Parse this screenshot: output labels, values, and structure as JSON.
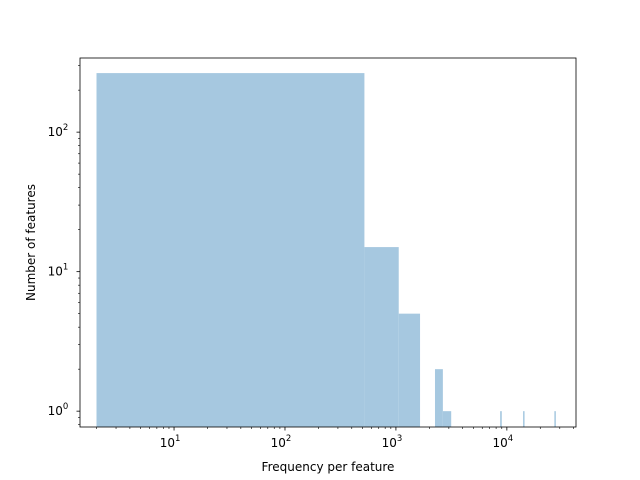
{
  "chart_data": {
    "type": "bar",
    "xlabel": "Frequency per feature",
    "ylabel": "Number of features",
    "xscale": "log",
    "yscale": "log",
    "xlim": [
      1.42,
      42000
    ],
    "ylim": [
      0.77,
      340
    ],
    "x_ticks": [
      {
        "base": "10",
        "exp": "1",
        "value": 10
      },
      {
        "base": "10",
        "exp": "2",
        "value": 100
      },
      {
        "base": "10",
        "exp": "3",
        "value": 1000
      },
      {
        "base": "10",
        "exp": "4",
        "value": 10000
      }
    ],
    "y_ticks": [
      {
        "base": "10",
        "exp": "0",
        "value": 1
      },
      {
        "base": "10",
        "exp": "1",
        "value": 10
      },
      {
        "base": "10",
        "exp": "2",
        "value": 100
      }
    ],
    "bar_color": "#a6c8e0",
    "bins": [
      {
        "x0": 2,
        "x1": 520,
        "count": 265
      },
      {
        "x0": 520,
        "x1": 1060,
        "count": 15
      },
      {
        "x0": 1060,
        "x1": 1650,
        "count": 5
      },
      {
        "x0": 2250,
        "x1": 2650,
        "count": 2
      },
      {
        "x0": 2650,
        "x1": 3150,
        "count": 1
      },
      {
        "x0": 8700,
        "x1": 9000,
        "count": 1
      },
      {
        "x0": 14000,
        "x1": 14350,
        "count": 1
      },
      {
        "x0": 26800,
        "x1": 27200,
        "count": 1
      }
    ]
  }
}
